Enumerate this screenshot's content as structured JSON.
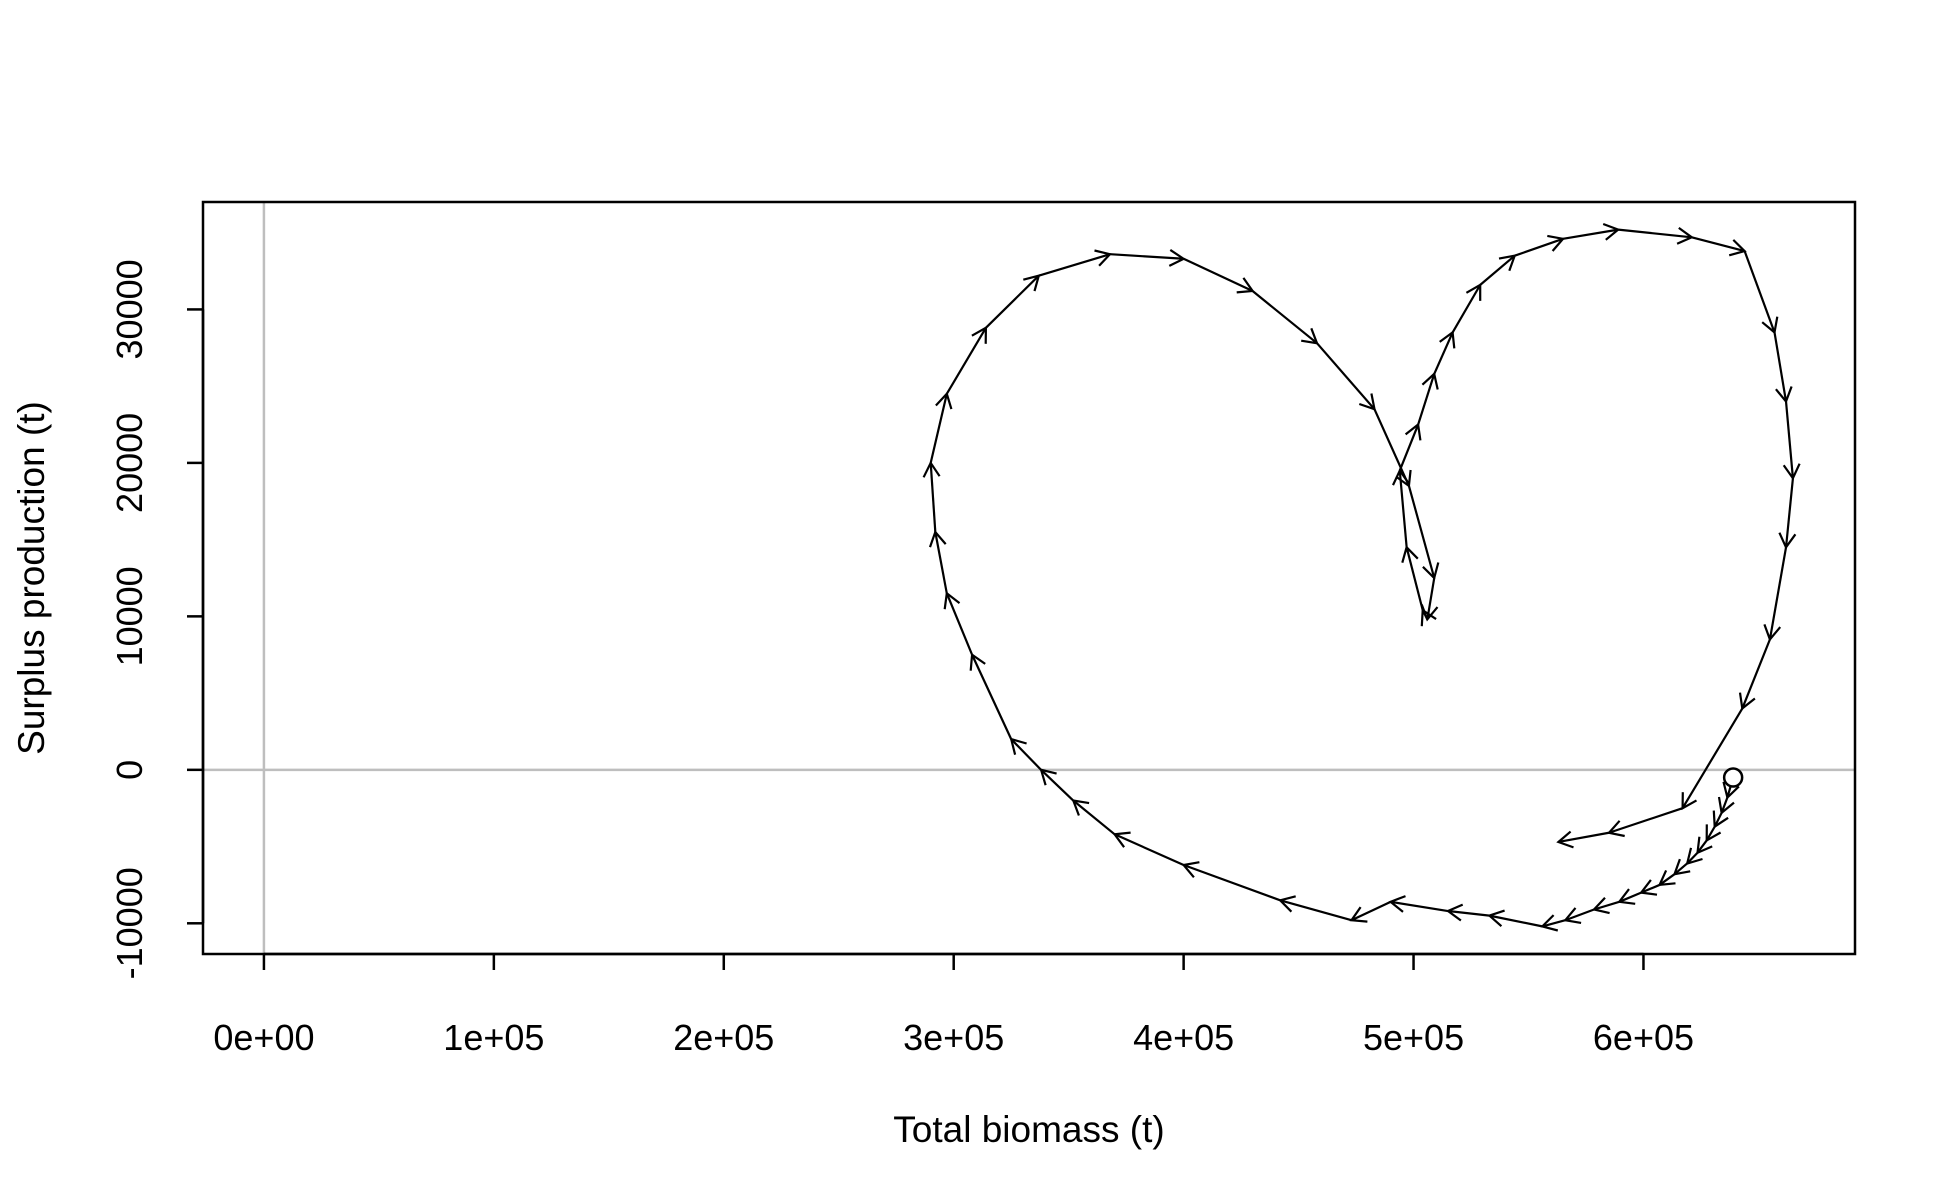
{
  "chart_data": {
    "type": "line",
    "title": "",
    "xlabel": "Total biomass (t)",
    "ylabel": "Surplus production (t)",
    "xlim": [
      -26500,
      692000
    ],
    "ylim": [
      -12000,
      37000
    ],
    "x_ticks": [
      0,
      100000,
      200000,
      300000,
      400000,
      500000,
      600000
    ],
    "x_tick_labels": [
      "0e+00",
      "1e+05",
      "2e+05",
      "3e+05",
      "4e+05",
      "5e+05",
      "6e+05"
    ],
    "y_ticks": [
      -10000,
      0,
      10000,
      20000,
      30000
    ],
    "y_tick_labels": [
      "-10000",
      "0",
      "10000",
      "20000",
      "30000"
    ],
    "reference_lines": {
      "x": 0,
      "y": 0,
      "color": "#bebebe"
    },
    "line_color": "#000000",
    "start_marker": "open-circle",
    "grid": false,
    "legend": "none",
    "series": [
      {
        "x": [
          639000,
          636500,
          634000,
          631000,
          627500,
          623500,
          619000,
          613500,
          607000,
          599000,
          589500,
          578500,
          566000,
          556000,
          533000,
          515000,
          490000,
          473000,
          442000,
          400000,
          370000,
          352000,
          338000,
          325000,
          308000,
          297000,
          292000,
          290000,
          297000,
          314000,
          337000,
          368000,
          400000,
          430000,
          458000,
          483000,
          498000,
          509000,
          506000,
          504000,
          497000,
          494000,
          502000,
          509000,
          517000,
          529000,
          544000,
          565000,
          589000,
          621000,
          644000,
          657000,
          662000,
          665000,
          662000,
          655000,
          643000,
          617000,
          585000,
          563000
        ],
        "y": [
          -500,
          -1800,
          -2800,
          -3700,
          -4600,
          -5400,
          -6100,
          -6800,
          -7500,
          -8000,
          -8600,
          -9100,
          -9800,
          -10200,
          -9500,
          -9200,
          -8600,
          -9800,
          -8500,
          -6200,
          -4200,
          -2000,
          0,
          2000,
          7500,
          11500,
          15500,
          20000,
          24500,
          28800,
          32200,
          33600,
          33300,
          31200,
          27800,
          23500,
          18500,
          12500,
          9800,
          10400,
          14500,
          19500,
          22500,
          25800,
          28500,
          31600,
          33500,
          34600,
          35200,
          34700,
          33800,
          28500,
          24000,
          19000,
          14500,
          8500,
          4000,
          -2500,
          -4100,
          -4700
        ]
      }
    ]
  }
}
